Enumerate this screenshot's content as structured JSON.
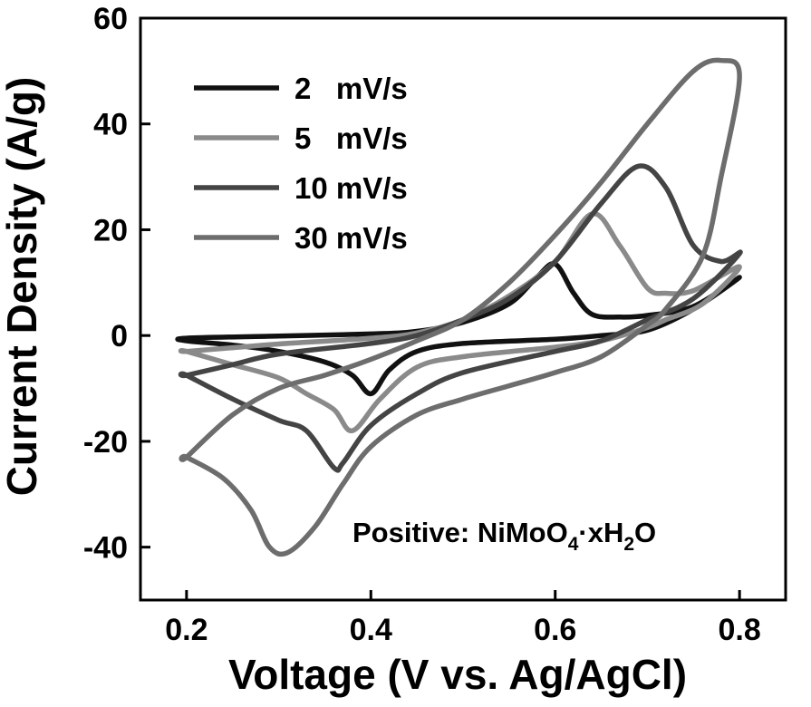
{
  "chart_data": {
    "type": "line",
    "xlabel": "Voltage (V vs. Ag/AgCl)",
    "ylabel": "Current Density (A/g)",
    "xlim": [
      0.15,
      0.85
    ],
    "ylim": [
      -50,
      60
    ],
    "xticks": [
      0.2,
      0.4,
      0.6,
      0.8
    ],
    "xtick_labels": [
      "0.2",
      "0.4",
      "0.6",
      "0.8"
    ],
    "yticks": [
      -40,
      -20,
      0,
      20,
      40,
      60
    ],
    "ytick_labels": [
      "-40",
      "-20",
      "0",
      "20",
      "40",
      "60"
    ],
    "grid": false,
    "legend_position": "top-left",
    "annotation": {
      "parts": [
        {
          "t": "Positive: NiMoO",
          "sub": false
        },
        {
          "t": "4",
          "sub": true
        },
        {
          "t": "·xH",
          "sub": false
        },
        {
          "t": "2",
          "sub": true
        },
        {
          "t": "O",
          "sub": false
        }
      ]
    },
    "series": [
      {
        "name": "2   mV/s",
        "color": "#111111",
        "points": [
          [
            0.2,
            -0.5
          ],
          [
            0.3,
            -0.1
          ],
          [
            0.4,
            0.3
          ],
          [
            0.45,
            0.8
          ],
          [
            0.5,
            2.5
          ],
          [
            0.55,
            6
          ],
          [
            0.58,
            11
          ],
          [
            0.6,
            13.5
          ],
          [
            0.62,
            8
          ],
          [
            0.64,
            4
          ],
          [
            0.67,
            3.5
          ],
          [
            0.7,
            3.8
          ],
          [
            0.75,
            5.5
          ],
          [
            0.8,
            11
          ],
          [
            0.75,
            5
          ],
          [
            0.7,
            1
          ],
          [
            0.65,
            0
          ],
          [
            0.6,
            -0.7
          ],
          [
            0.5,
            -1.5
          ],
          [
            0.45,
            -3
          ],
          [
            0.42,
            -6.5
          ],
          [
            0.4,
            -11
          ],
          [
            0.38,
            -7.5
          ],
          [
            0.35,
            -5
          ],
          [
            0.3,
            -3
          ],
          [
            0.25,
            -1.8
          ],
          [
            0.2,
            -1
          ]
        ]
      },
      {
        "name": "5   mV/s",
        "color": "#8a8a8a",
        "points": [
          [
            0.2,
            -3
          ],
          [
            0.25,
            -2.3
          ],
          [
            0.3,
            -1.6
          ],
          [
            0.4,
            -0.5
          ],
          [
            0.45,
            0.5
          ],
          [
            0.5,
            3
          ],
          [
            0.55,
            7.5
          ],
          [
            0.6,
            14
          ],
          [
            0.64,
            23
          ],
          [
            0.67,
            17
          ],
          [
            0.7,
            9
          ],
          [
            0.72,
            8
          ],
          [
            0.75,
            8.5
          ],
          [
            0.8,
            13
          ],
          [
            0.76,
            6
          ],
          [
            0.72,
            3
          ],
          [
            0.7,
            1.5
          ],
          [
            0.65,
            -1
          ],
          [
            0.6,
            -2.2
          ],
          [
            0.5,
            -4
          ],
          [
            0.45,
            -6
          ],
          [
            0.41,
            -12
          ],
          [
            0.38,
            -18
          ],
          [
            0.36,
            -14
          ],
          [
            0.33,
            -11
          ],
          [
            0.3,
            -8
          ],
          [
            0.25,
            -5.5
          ],
          [
            0.2,
            -3
          ]
        ]
      },
      {
        "name": "10 mV/s",
        "color": "#444444",
        "points": [
          [
            0.2,
            -7.5
          ],
          [
            0.25,
            -5.5
          ],
          [
            0.3,
            -3.5
          ],
          [
            0.4,
            -1.5
          ],
          [
            0.45,
            0
          ],
          [
            0.5,
            3
          ],
          [
            0.55,
            7
          ],
          [
            0.6,
            14
          ],
          [
            0.65,
            25
          ],
          [
            0.69,
            32
          ],
          [
            0.72,
            28
          ],
          [
            0.75,
            17
          ],
          [
            0.78,
            14
          ],
          [
            0.8,
            15.5
          ],
          [
            0.75,
            7
          ],
          [
            0.7,
            3
          ],
          [
            0.65,
            -1
          ],
          [
            0.6,
            -3
          ],
          [
            0.5,
            -7
          ],
          [
            0.45,
            -11
          ],
          [
            0.4,
            -17
          ],
          [
            0.37,
            -24
          ],
          [
            0.36,
            -25
          ],
          [
            0.33,
            -18
          ],
          [
            0.3,
            -16
          ],
          [
            0.25,
            -12
          ],
          [
            0.2,
            -7.5
          ]
        ]
      },
      {
        "name": "30 mV/s",
        "color": "#6d6d6d",
        "points": [
          [
            0.2,
            -23
          ],
          [
            0.25,
            -15
          ],
          [
            0.3,
            -10
          ],
          [
            0.35,
            -7.5
          ],
          [
            0.4,
            -4.5
          ],
          [
            0.45,
            -1
          ],
          [
            0.5,
            3
          ],
          [
            0.55,
            10
          ],
          [
            0.6,
            19
          ],
          [
            0.65,
            29
          ],
          [
            0.7,
            40
          ],
          [
            0.75,
            50
          ],
          [
            0.78,
            52
          ],
          [
            0.8,
            49
          ],
          [
            0.78,
            30
          ],
          [
            0.76,
            15
          ],
          [
            0.72,
            5
          ],
          [
            0.7,
            2
          ],
          [
            0.65,
            -4
          ],
          [
            0.6,
            -7
          ],
          [
            0.55,
            -9.5
          ],
          [
            0.5,
            -12
          ],
          [
            0.45,
            -15
          ],
          [
            0.4,
            -21
          ],
          [
            0.37,
            -28
          ],
          [
            0.34,
            -36
          ],
          [
            0.31,
            -41
          ],
          [
            0.29,
            -40
          ],
          [
            0.27,
            -33
          ],
          [
            0.24,
            -27
          ],
          [
            0.2,
            -23
          ]
        ]
      }
    ]
  }
}
